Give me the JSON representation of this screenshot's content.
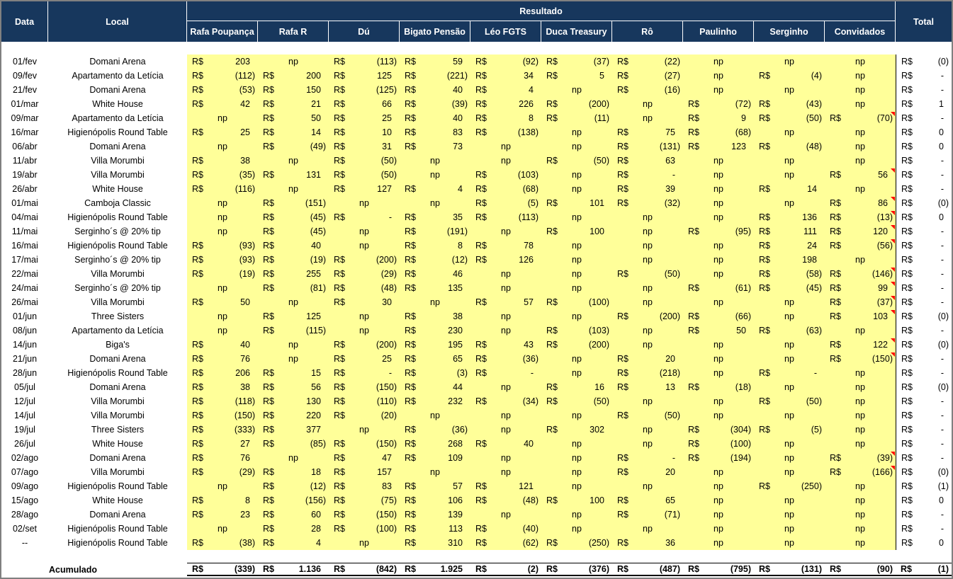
{
  "currency": "R$",
  "header": {
    "data": "Data",
    "local": "Local",
    "resultado": "Resultado",
    "total": "Total",
    "players": [
      "Rafa Poupança",
      "Rafa R",
      "Dú",
      "Bigato Pensão",
      "Léo FGTS",
      "Duca Treasury",
      "Rô",
      "Paulinho",
      "Serginho",
      "Convidados"
    ]
  },
  "note_flag_meaning": "values ending in ! carry a red comment marker in the cell corner",
  "rows": [
    {
      "date": "01/fev",
      "local": "Domani Arena",
      "values": [
        "203",
        "np",
        "(113)",
        "59",
        "(92)",
        "(37)",
        "(22)",
        "np",
        "np",
        "np"
      ],
      "total": "(0)"
    },
    {
      "date": "09/fev",
      "local": "Apartamento da Letícia",
      "values": [
        "(112)",
        "200",
        "125",
        "(221)",
        "34",
        "5",
        "(27)",
        "np",
        "(4)",
        "np"
      ],
      "total": "-"
    },
    {
      "date": "21/fev",
      "local": "Domani Arena",
      "values": [
        "(53)",
        "150",
        "(125)",
        "40",
        "4",
        "np",
        "(16)",
        "np",
        "np",
        "np"
      ],
      "total": "-"
    },
    {
      "date": "01/mar",
      "local": "White House",
      "values": [
        "42",
        "21",
        "66",
        "(39)",
        "226",
        "(200)",
        "np",
        "(72)",
        "(43)",
        "np"
      ],
      "total": "1"
    },
    {
      "date": "09/mar",
      "local": "Apartamento da Letícia",
      "values": [
        "np",
        "50",
        "25",
        "40",
        "8",
        "(11)",
        "np",
        "9",
        "(50)",
        "(70)!"
      ],
      "total": "-"
    },
    {
      "date": "16/mar",
      "local": "Higienópolis Round Table",
      "values": [
        "25",
        "14",
        "10",
        "83",
        "(138)",
        "np",
        "75",
        "(68)",
        "np",
        "np"
      ],
      "total": "0"
    },
    {
      "date": "06/abr",
      "local": "Domani Arena",
      "values": [
        "np",
        "(49)",
        "31",
        "73",
        "np",
        "np",
        "(131)",
        "123",
        "(48)",
        "np"
      ],
      "total": "0"
    },
    {
      "date": "11/abr",
      "local": "Villa Morumbi",
      "values": [
        "38",
        "np",
        "(50)",
        "np",
        "np",
        "(50)",
        "63",
        "np",
        "np",
        "np"
      ],
      "total": "-"
    },
    {
      "date": "19/abr",
      "local": "Villa Morumbi",
      "values": [
        "(35)",
        "131",
        "(50)",
        "np",
        "(103)",
        "np",
        "-",
        "np",
        "np",
        "56!"
      ],
      "total": "-"
    },
    {
      "date": "26/abr",
      "local": "White House",
      "values": [
        "(116)",
        "np",
        "127",
        "4",
        "(68)",
        "np",
        "39",
        "np",
        "14",
        "np"
      ],
      "total": "-"
    },
    {
      "date": "01/mai",
      "local": "Camboja Classic",
      "values": [
        "np",
        "(151)",
        "np",
        "np",
        "(5)",
        "101",
        "(32)",
        "np",
        "np",
        "86!"
      ],
      "total": "(0)"
    },
    {
      "date": "04/mai",
      "local": "Higienópolis Round Table",
      "values": [
        "np",
        "(45)",
        "-",
        "35",
        "(113)",
        "np",
        "np",
        "np",
        "136",
        "(13)!"
      ],
      "total": "0"
    },
    {
      "date": "11/mai",
      "local": "Serginho´s @ 20% tip",
      "values": [
        "np",
        "(45)",
        "np",
        "(191)",
        "np",
        "100",
        "np",
        "(95)",
        "111",
        "120!"
      ],
      "total": "-"
    },
    {
      "date": "16/mai",
      "local": "Higienópolis Round Table",
      "values": [
        "(93)",
        "40",
        "np",
        "8",
        "78",
        "np",
        "np",
        "np",
        "24",
        "(56)!"
      ],
      "total": "-"
    },
    {
      "date": "17/mai",
      "local": "Serginho´s @ 20% tip",
      "values": [
        "(93)",
        "(19)",
        "(200)",
        "(12)",
        "126",
        "np",
        "np",
        "np",
        "198",
        "np"
      ],
      "total": "-"
    },
    {
      "date": "22/mai",
      "local": "Villa Morumbi",
      "values": [
        "(19)",
        "255",
        "(29)",
        "46",
        "np",
        "np",
        "(50)",
        "np",
        "(58)",
        "(146)!"
      ],
      "total": "-"
    },
    {
      "date": "24/mai",
      "local": "Serginho´s @ 20% tip",
      "values": [
        "np",
        "(81)",
        "(48)",
        "135",
        "np",
        "np",
        "np",
        "(61)",
        "(45)",
        "99!"
      ],
      "total": "-"
    },
    {
      "date": "26/mai",
      "local": "Villa Morumbi",
      "values": [
        "50",
        "np",
        "30",
        "np",
        "57",
        "(100)",
        "np",
        "np",
        "np",
        "(37)!"
      ],
      "total": "-"
    },
    {
      "date": "01/jun",
      "local": "Three Sisters",
      "values": [
        "np",
        "125",
        "np",
        "38",
        "np",
        "np",
        "(200)",
        "(66)",
        "np",
        "103!"
      ],
      "total": "(0)"
    },
    {
      "date": "08/jun",
      "local": "Apartamento da Letícia",
      "values": [
        "np",
        "(115)",
        "np",
        "230",
        "np",
        "(103)",
        "np",
        "50",
        "(63)",
        "np"
      ],
      "total": "-"
    },
    {
      "date": "14/jun",
      "local": "Biga's",
      "values": [
        "40",
        "np",
        "(200)",
        "195",
        "43",
        "(200)",
        "np",
        "np",
        "np",
        "122!"
      ],
      "total": "(0)"
    },
    {
      "date": "21/jun",
      "local": "Domani Arena",
      "values": [
        "76",
        "np",
        "25",
        "65",
        "(36)",
        "np",
        "20",
        "np",
        "np",
        "(150)!"
      ],
      "total": "-"
    },
    {
      "date": "28/jun",
      "local": "Higienópolis Round Table",
      "values": [
        "206",
        "15",
        "-",
        "(3)",
        "-",
        "np",
        "(218)",
        "np",
        "-",
        "np"
      ],
      "total": "-"
    },
    {
      "date": "05/jul",
      "local": "Domani Arena",
      "values": [
        "38",
        "56",
        "(150)",
        "44",
        "np",
        "16",
        "13",
        "(18)",
        "np",
        "np"
      ],
      "total": "(0)"
    },
    {
      "date": "12/jul",
      "local": "Villa Morumbi",
      "values": [
        "(118)",
        "130",
        "(110)",
        "232",
        "(34)",
        "(50)",
        "np",
        "np",
        "(50)",
        "np"
      ],
      "total": "-"
    },
    {
      "date": "14/jul",
      "local": "Villa Morumbi",
      "values": [
        "(150)",
        "220",
        "(20)",
        "np",
        "np",
        "np",
        "(50)",
        "np",
        "np",
        "np"
      ],
      "total": "-"
    },
    {
      "date": "19/jul",
      "local": "Three Sisters",
      "values": [
        "(333)",
        "377",
        "np",
        "(36)",
        "np",
        "302",
        "np",
        "(304)",
        "(5)",
        "np"
      ],
      "total": "-"
    },
    {
      "date": "26/jul",
      "local": "White House",
      "values": [
        "27",
        "(85)",
        "(150)",
        "268",
        "40",
        "np",
        "np",
        "(100)",
        "np",
        "np"
      ],
      "total": "-"
    },
    {
      "date": "02/ago",
      "local": "Domani Arena",
      "values": [
        "76",
        "np",
        "47",
        "109",
        "np",
        "np",
        "-",
        "(194)",
        "np",
        "(39)!"
      ],
      "total": "-"
    },
    {
      "date": "07/ago",
      "local": "Villa Morumbi",
      "values": [
        "(29)",
        "18",
        "157",
        "np",
        "np",
        "np",
        "20",
        "np",
        "np",
        "(166)!"
      ],
      "total": "(0)"
    },
    {
      "date": "09/ago",
      "local": "Higienópolis Round Table",
      "values": [
        "np",
        "(12)",
        "83",
        "57",
        "121",
        "np",
        "np",
        "np",
        "(250)",
        "np"
      ],
      "total": "(1)"
    },
    {
      "date": "15/ago",
      "local": "White House",
      "values": [
        "8",
        "(156)",
        "(75)",
        "106",
        "(48)",
        "100",
        "65",
        "np",
        "np",
        "np"
      ],
      "total": "0"
    },
    {
      "date": "28/ago",
      "local": "Domani Arena",
      "values": [
        "23",
        "60",
        "(150)",
        "139",
        "np",
        "np",
        "(71)",
        "np",
        "np",
        "np"
      ],
      "total": "-"
    },
    {
      "date": "02/set",
      "local": "Higienópolis Round Table",
      "values": [
        "np",
        "28",
        "(100)",
        "113",
        "(40)",
        "np",
        "np",
        "np",
        "np",
        "np"
      ],
      "total": "-"
    },
    {
      "date": "--",
      "local": "Higienópolis Round Table",
      "values": [
        "(38)",
        "4",
        "np",
        "310",
        "(62)",
        "(250)",
        "36",
        "np",
        "np",
        "np"
      ],
      "total": "0"
    }
  ],
  "footer": {
    "label": "Acumulado",
    "values": [
      "(339)",
      "1.136",
      "(842)",
      "1.925",
      "(2)",
      "(376)",
      "(487)",
      "(795)",
      "(131)",
      "(90)"
    ],
    "total": "(1)"
  },
  "colors": {
    "header_bg": "#17375D",
    "header_text": "#FFFFFF",
    "data_bg": "#FFFF99",
    "note_marker": "#FF0000",
    "frame": "#808080"
  }
}
